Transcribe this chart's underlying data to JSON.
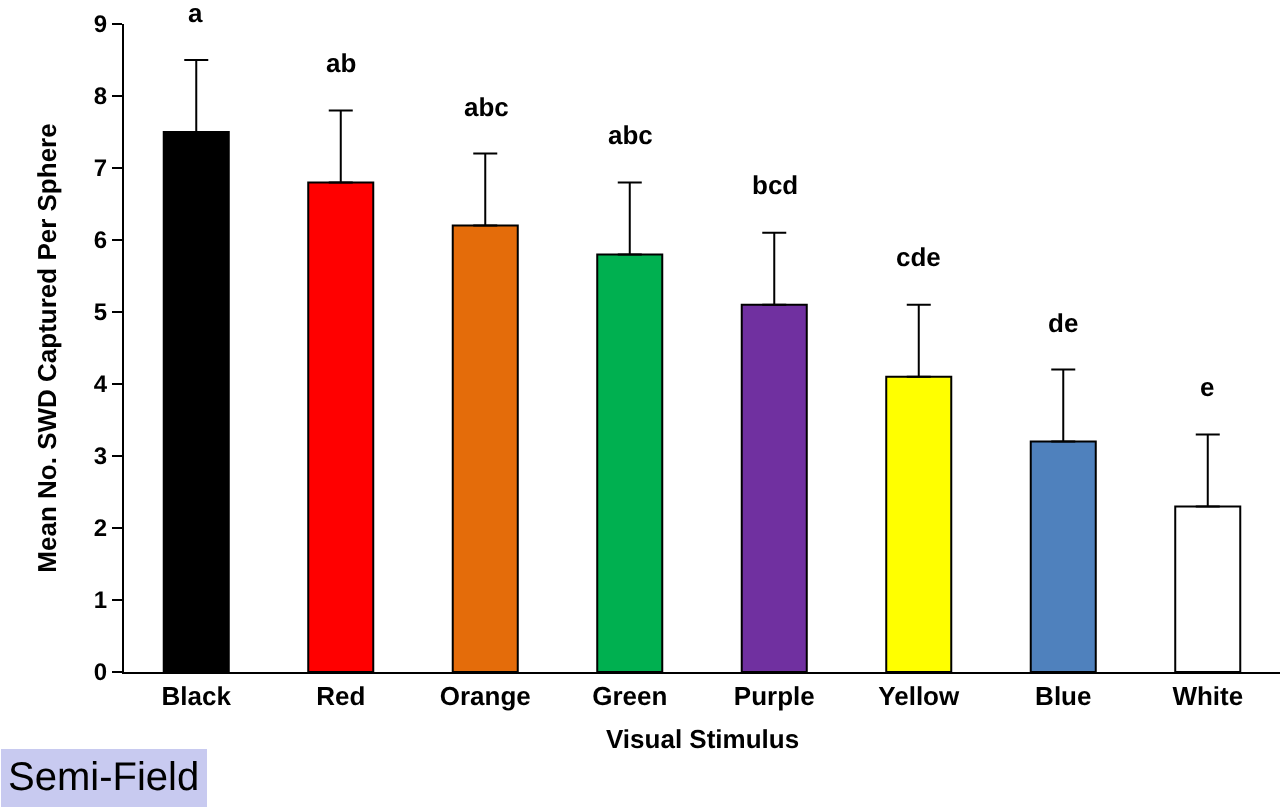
{
  "chart_data": {
    "type": "bar",
    "xlabel": "Visual Stimulus",
    "ylabel": "Mean No. SWD Captured Per Sphere",
    "categories": [
      "Black",
      "Red",
      "Orange",
      "Green",
      "Purple",
      "Yellow",
      "Blue",
      "White"
    ],
    "values": [
      7.5,
      6.8,
      6.2,
      5.8,
      5.1,
      4.1,
      3.2,
      2.3
    ],
    "colors": [
      "#000000",
      "#ff0000",
      "#e46c0a",
      "#00b050",
      "#7030a0",
      "#ffff00",
      "#4f81bd",
      "#ffffff"
    ],
    "errors": [
      [
        7.5,
        8.5
      ],
      [
        6.8,
        7.8
      ],
      [
        6.2,
        7.2
      ],
      [
        5.8,
        6.8
      ],
      [
        5.1,
        6.1
      ],
      [
        4.1,
        5.1
      ],
      [
        3.2,
        4.2
      ],
      [
        2.3,
        3.3
      ]
    ],
    "ylim": [
      0,
      9
    ],
    "yticks": [
      0,
      1,
      2,
      3,
      4,
      5,
      6,
      7,
      8,
      9
    ],
    "legend": false,
    "annotations": [
      "a",
      "ab",
      "abc",
      "abc",
      "bcd",
      "cde",
      "de",
      "e",
      "Semi-Field"
    ]
  }
}
